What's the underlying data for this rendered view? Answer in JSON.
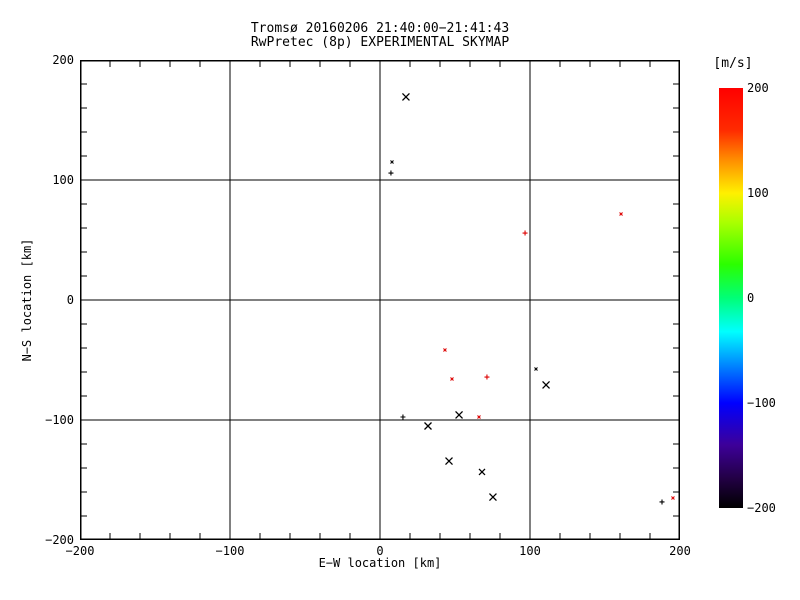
{
  "window": {
    "background": "#ffffff",
    "foreground": "#000000"
  },
  "chart_data": {
    "type": "scatter",
    "title": "Tromsø 20160206 21:40:00−21:41:43",
    "subtitle": "RwPretec (8p) EXPERIMENTAL SKYMAP",
    "xlabel": "E−W location [km]",
    "ylabel": "N−S location [km]",
    "xlim": [
      -200,
      200
    ],
    "ylim": [
      -200,
      200
    ],
    "xtick_values": [
      -200,
      -100,
      0,
      100,
      200
    ],
    "xtick_labels": [
      "−200",
      "−100",
      "0",
      "100",
      "200"
    ],
    "ytick_values": [
      -200,
      -100,
      0,
      100,
      200
    ],
    "ytick_labels": [
      "−200",
      "−100",
      "0",
      "100",
      "200"
    ],
    "minor_tick_step": 20,
    "grid": true,
    "axis_color": "#000000",
    "marker_colors": {
      "positive_velocity": "#dd0000",
      "negative_velocity": "#000000"
    },
    "points": [
      {
        "x": 17.3,
        "y": 169.2,
        "color": "#000000",
        "marker": "x",
        "size": 7
      },
      {
        "x": 8.0,
        "y": 115.0,
        "color": "#000000",
        "marker": "dot",
        "size": 3
      },
      {
        "x": 7.3,
        "y": 105.8,
        "color": "#000000",
        "marker": "plus",
        "size": 5
      },
      {
        "x": 160.7,
        "y": 71.7,
        "color": "#dd0000",
        "marker": "dot",
        "size": 3
      },
      {
        "x": 96.7,
        "y": 55.8,
        "color": "#dd0000",
        "marker": "plus",
        "size": 5
      },
      {
        "x": 43.3,
        "y": -41.7,
        "color": "#dd0000",
        "marker": "dot",
        "size": 3
      },
      {
        "x": 48.0,
        "y": -65.8,
        "color": "#dd0000",
        "marker": "dot",
        "size": 3
      },
      {
        "x": 71.3,
        "y": -64.2,
        "color": "#dd0000",
        "marker": "plus",
        "size": 5
      },
      {
        "x": 104.0,
        "y": -57.5,
        "color": "#000000",
        "marker": "dot",
        "size": 3
      },
      {
        "x": 110.7,
        "y": -70.8,
        "color": "#000000",
        "marker": "x",
        "size": 7
      },
      {
        "x": 15.3,
        "y": -97.5,
        "color": "#000000",
        "marker": "plus",
        "size": 5
      },
      {
        "x": 52.7,
        "y": -95.8,
        "color": "#000000",
        "marker": "x",
        "size": 7
      },
      {
        "x": 66.0,
        "y": -97.5,
        "color": "#dd0000",
        "marker": "dot",
        "size": 3
      },
      {
        "x": 32.0,
        "y": -105.0,
        "color": "#000000",
        "marker": "x",
        "size": 7
      },
      {
        "x": 46.0,
        "y": -134.2,
        "color": "#000000",
        "marker": "x",
        "size": 7
      },
      {
        "x": 68.0,
        "y": -143.3,
        "color": "#000000",
        "marker": "x",
        "size": 6
      },
      {
        "x": 75.3,
        "y": -164.2,
        "color": "#000000",
        "marker": "x",
        "size": 7
      },
      {
        "x": 188.0,
        "y": -168.3,
        "color": "#000000",
        "marker": "plus",
        "size": 5
      },
      {
        "x": 195.3,
        "y": -165.0,
        "color": "#dd0000",
        "marker": "dot",
        "size": 3
      }
    ],
    "colorbar": {
      "label": "[m/s]",
      "min": -200,
      "max": 200,
      "tick_values": [
        200,
        100,
        0,
        -100,
        -200
      ],
      "tick_labels": [
        "200",
        "100",
        "0",
        "−100",
        "−200"
      ],
      "gradient_top_to_bottom": [
        {
          "pos": 0.0,
          "color": "#ff0000"
        },
        {
          "pos": 0.1,
          "color": "#ff2a00"
        },
        {
          "pos": 0.17,
          "color": "#ff8c00"
        },
        {
          "pos": 0.25,
          "color": "#fff000"
        },
        {
          "pos": 0.32,
          "color": "#aaff00"
        },
        {
          "pos": 0.42,
          "color": "#2bff00"
        },
        {
          "pos": 0.5,
          "color": "#00ff77"
        },
        {
          "pos": 0.58,
          "color": "#00ffff"
        },
        {
          "pos": 0.67,
          "color": "#0077ff"
        },
        {
          "pos": 0.75,
          "color": "#0000ff"
        },
        {
          "pos": 0.85,
          "color": "#3d0099"
        },
        {
          "pos": 0.93,
          "color": "#220044"
        },
        {
          "pos": 1.0,
          "color": "#000000"
        }
      ]
    }
  }
}
